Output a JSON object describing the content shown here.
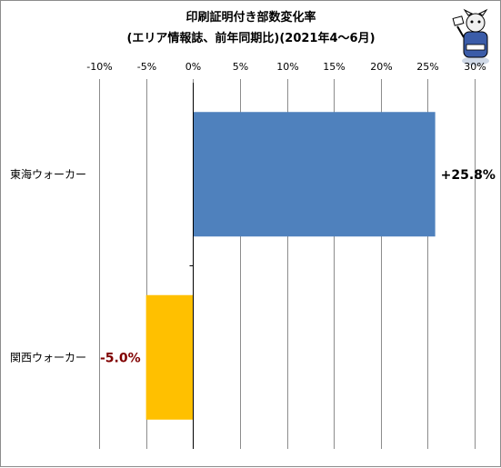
{
  "chart_data": {
    "type": "bar",
    "orientation": "horizontal",
    "title": "印刷証明付き部数変化率",
    "subtitle": "(エリア情報誌、前年同期比)(2021年4〜6月)",
    "categories": [
      "東海ウォーカー",
      "関西ウォーカー"
    ],
    "values": [
      25.8,
      -5.0
    ],
    "data_labels": [
      "+25.8%",
      "-5.0%"
    ],
    "colors": [
      "#4f81bd",
      "#ffc000"
    ],
    "label_colors": [
      "#000000",
      "#800000"
    ],
    "xlim": [
      -10,
      30
    ],
    "xticks": [
      -10,
      -5,
      0,
      5,
      10,
      15,
      20,
      25,
      30
    ],
    "tick_labels": [
      "-10%",
      "-5%",
      "0%",
      "5%",
      "10%",
      "15%",
      "20%",
      "25%",
      "30%"
    ],
    "xlabel": "",
    "ylabel": "",
    "grid": true,
    "axis_position": "top"
  }
}
